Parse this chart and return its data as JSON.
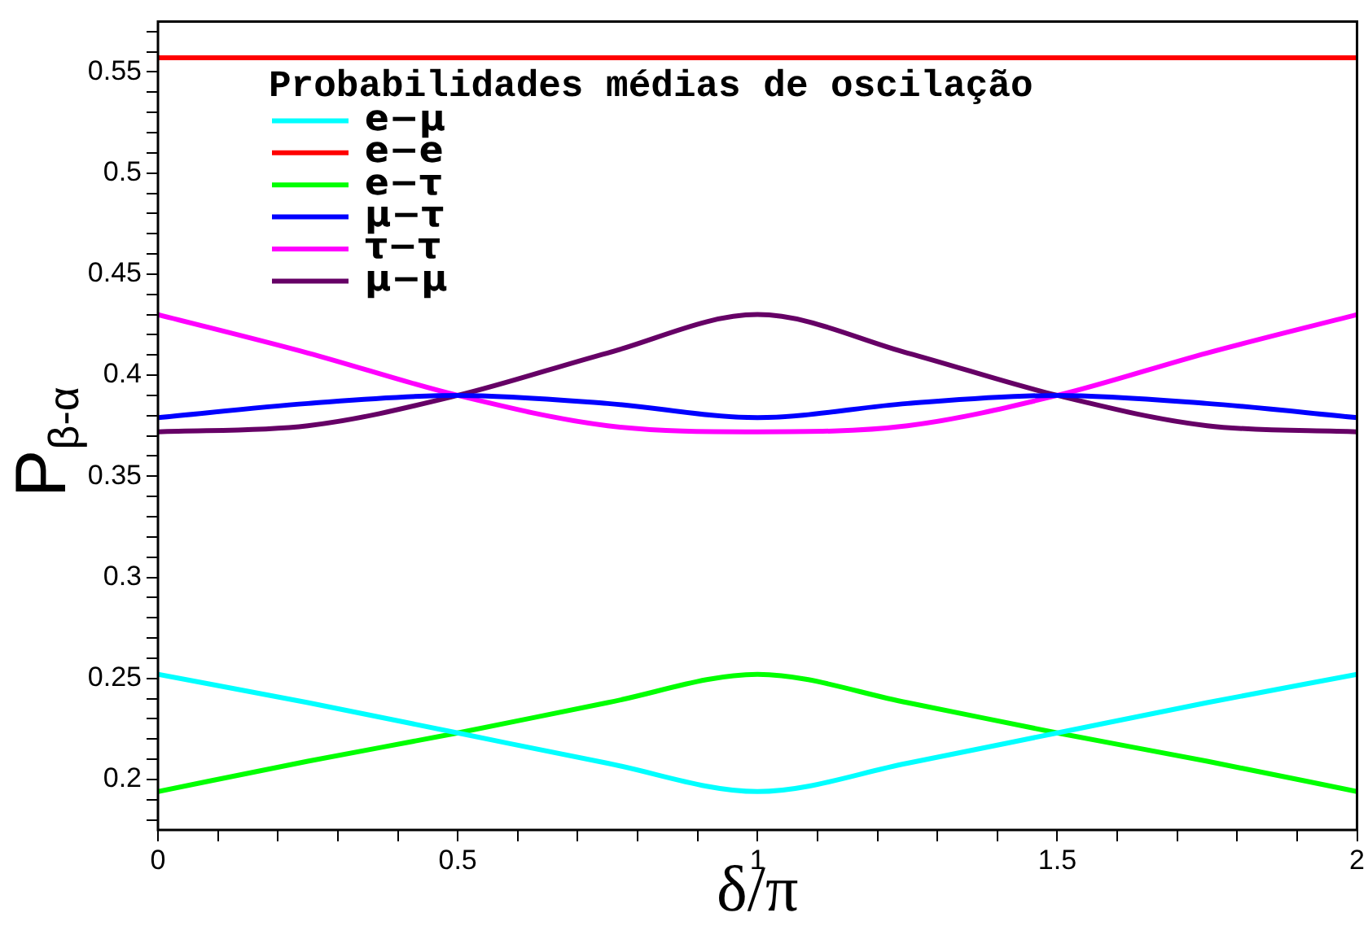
{
  "chart_data": {
    "type": "line",
    "xlabel": "δ/π",
    "ylabel": "P$_{β-α}$",
    "legend_title": "Probabilidades médias de oscilação",
    "legend": "top left",
    "x": [
      0,
      0.25,
      0.5,
      0.75,
      1,
      1.25,
      1.5,
      1.75,
      2
    ],
    "xlim": [
      0,
      2
    ],
    "xticks": [
      0,
      {
        "value": 0.1,
        "label": null
      },
      {
        "value": 0.2,
        "label": null
      },
      {
        "value": 0.3,
        "label": null
      },
      {
        "value": 0.4,
        "label": null
      },
      0.5,
      {
        "value": 0.6,
        "label": null
      },
      {
        "value": 0.7,
        "label": null
      },
      {
        "value": 0.8,
        "label": null
      },
      {
        "value": 0.9,
        "label": null
      },
      1,
      {
        "value": 1.1,
        "label": null
      },
      {
        "value": 1.2,
        "label": null
      },
      {
        "value": 1.3,
        "label": null
      },
      {
        "value": 1.4,
        "label": null
      },
      1.5,
      {
        "value": 1.6,
        "label": null
      },
      {
        "value": 1.7,
        "label": null
      },
      {
        "value": 1.8,
        "label": null
      },
      {
        "value": 1.9,
        "label": null
      },
      2
    ],
    "ylim": [
      0.175,
      0.575
    ],
    "yticks": [
      {
        "value": 0.18,
        "label": null
      },
      {
        "value": 0.19,
        "label": null
      },
      0.2,
      {
        "value": 0.21,
        "label": null
      },
      {
        "value": 0.22,
        "label": null
      },
      {
        "value": 0.23,
        "label": null
      },
      {
        "value": 0.24,
        "label": null
      },
      0.25,
      {
        "value": 0.26,
        "label": null
      },
      {
        "value": 0.27,
        "label": null
      },
      {
        "value": 0.28,
        "label": null
      },
      {
        "value": 0.29,
        "label": null
      },
      0.3,
      {
        "value": 0.31,
        "label": null
      },
      {
        "value": 0.32,
        "label": null
      },
      {
        "value": 0.33,
        "label": null
      },
      {
        "value": 0.34,
        "label": null
      },
      0.35,
      {
        "value": 0.36,
        "label": null
      },
      {
        "value": 0.37,
        "label": null
      },
      {
        "value": 0.38,
        "label": null
      },
      {
        "value": 0.39,
        "label": null
      },
      0.4,
      {
        "value": 0.41,
        "label": null
      },
      {
        "value": 0.42,
        "label": null
      },
      {
        "value": 0.43,
        "label": null
      },
      {
        "value": 0.44,
        "label": null
      },
      0.45,
      {
        "value": 0.46,
        "label": null
      },
      {
        "value": 0.47,
        "label": null
      },
      {
        "value": 0.48,
        "label": null
      },
      {
        "value": 0.49,
        "label": null
      },
      0.5,
      {
        "value": 0.51,
        "label": null
      },
      {
        "value": 0.52,
        "label": null
      },
      {
        "value": 0.53,
        "label": null
      },
      {
        "value": 0.54,
        "label": null
      },
      0.55,
      {
        "value": 0.56,
        "label": null
      },
      {
        "value": 0.57,
        "label": null
      }
    ],
    "series": [
      {
        "name": "e−μ",
        "color": "#00ffff",
        "values": [
          0.252,
          0.238,
          0.223,
          0.208,
          0.194,
          0.208,
          0.223,
          0.238,
          0.252
        ]
      },
      {
        "name": "e−e",
        "color": "#ff0000",
        "values": [
          0.557,
          0.557,
          0.557,
          0.557,
          0.557,
          0.557,
          0.557,
          0.557,
          0.557
        ]
      },
      {
        "name": "e−τ",
        "color": "#00ff00",
        "values": [
          0.194,
          0.209,
          0.223,
          0.238,
          0.252,
          0.238,
          0.223,
          0.209,
          0.194
        ]
      },
      {
        "name": "μ−τ",
        "color": "#0000ff",
        "values": [
          0.379,
          0.386,
          0.39,
          0.386,
          0.379,
          0.386,
          0.39,
          0.386,
          0.379
        ]
      },
      {
        "name": "τ−τ",
        "color": "#ff00ff",
        "values": [
          0.43,
          0.411,
          0.39,
          0.375,
          0.372,
          0.375,
          0.39,
          0.411,
          0.43
        ]
      },
      {
        "name": "μ−μ",
        "color": "#660066",
        "values": [
          0.372,
          0.375,
          0.39,
          0.411,
          0.43,
          0.411,
          0.39,
          0.375,
          0.372
        ]
      }
    ]
  }
}
